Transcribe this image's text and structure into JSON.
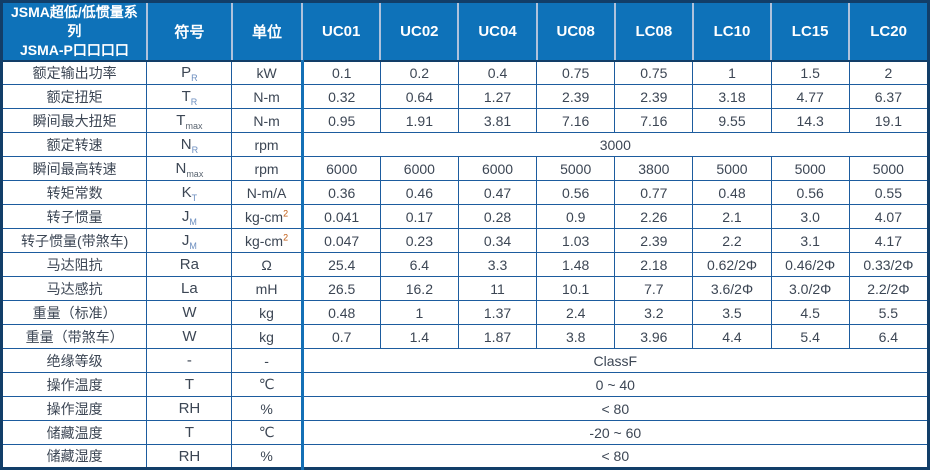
{
  "table_title": {
    "line1": "JSMA超低/低惯量系列",
    "line2": "JSMA-P口口口口"
  },
  "header": {
    "symbol_label": "符号",
    "unit_label": "单位",
    "models": [
      "UC01",
      "UC02",
      "UC04",
      "UC08",
      "LC08",
      "LC10",
      "LC15",
      "LC20"
    ]
  },
  "rows": [
    {
      "label": "额定输出功率",
      "symbol": {
        "base": "P",
        "sub": "R"
      },
      "unit": {
        "base": "kW"
      },
      "values": [
        "0.1",
        "0.2",
        "0.4",
        "0.75",
        "0.75",
        "1",
        "1.5",
        "2"
      ]
    },
    {
      "label": "额定扭矩",
      "symbol": {
        "base": "T",
        "sub": "R"
      },
      "unit": {
        "base": "N-m"
      },
      "values": [
        "0.32",
        "0.64",
        "1.27",
        "2.39",
        "2.39",
        "3.18",
        "4.77",
        "6.37"
      ]
    },
    {
      "label": "瞬间最大扭矩",
      "symbol": {
        "base": "T",
        "sub": "max"
      },
      "unit": {
        "base": "N-m"
      },
      "values": [
        "0.95",
        "1.91",
        "3.81",
        "7.16",
        "7.16",
        "9.55",
        "14.3",
        "19.1"
      ]
    },
    {
      "label": "额定转速",
      "symbol": {
        "base": "N",
        "sub": "R"
      },
      "unit": {
        "base": "rpm"
      },
      "span_value": "3000"
    },
    {
      "label": "瞬间最高转速",
      "symbol": {
        "base": "N",
        "sub": "max"
      },
      "unit": {
        "base": "rpm"
      },
      "values": [
        "6000",
        "6000",
        "6000",
        "5000",
        "3800",
        "5000",
        "5000",
        "5000"
      ]
    },
    {
      "label": "转矩常数",
      "symbol": {
        "base": "K",
        "sub": "T"
      },
      "unit": {
        "base": "N-m/A"
      },
      "values": [
        "0.36",
        "0.46",
        "0.47",
        "0.56",
        "0.77",
        "0.48",
        "0.56",
        "0.55"
      ]
    },
    {
      "label": "转子惯量",
      "symbol": {
        "base": "J",
        "sub": "M"
      },
      "unit": {
        "base": "kg-cm",
        "sup": "2"
      },
      "values": [
        "0.041",
        "0.17",
        "0.28",
        "0.9",
        "2.26",
        "2.1",
        "3.0",
        "4.07"
      ]
    },
    {
      "label": "转子惯量(带煞车)",
      "symbol": {
        "base": "J",
        "sub": "M"
      },
      "unit": {
        "base": "kg-cm",
        "sup": "2"
      },
      "values": [
        "0.047",
        "0.23",
        "0.34",
        "1.03",
        "2.39",
        "2.2",
        "3.1",
        "4.17"
      ]
    },
    {
      "label": "马达阻抗",
      "symbol": {
        "base": "Ra"
      },
      "unit": {
        "base": "Ω"
      },
      "values": [
        "25.4",
        "6.4",
        "3.3",
        "1.48",
        "2.18",
        "0.62/2Φ",
        "0.46/2Φ",
        "0.33/2Φ"
      ]
    },
    {
      "label": "马达感抗",
      "symbol": {
        "base": "La"
      },
      "unit": {
        "base": "mH"
      },
      "values": [
        "26.5",
        "16.2",
        "11",
        "10.1",
        "7.7",
        "3.6/2Φ",
        "3.0/2Φ",
        "2.2/2Φ"
      ]
    },
    {
      "label": "重量（标准）",
      "symbol": {
        "base": "W"
      },
      "unit": {
        "base": "kg"
      },
      "values": [
        "0.48",
        "1",
        "1.37",
        "2.4",
        "3.2",
        "3.5",
        "4.5",
        "5.5"
      ]
    },
    {
      "label": "重量（带煞车）",
      "symbol": {
        "base": "W"
      },
      "unit": {
        "base": "kg"
      },
      "values": [
        "0.7",
        "1.4",
        "1.87",
        "3.8",
        "3.96",
        "4.4",
        "5.4",
        "6.4"
      ]
    },
    {
      "label": "绝缘等级",
      "symbol": {
        "base": "-"
      },
      "unit": {
        "base": "-"
      },
      "span_value": "ClassF"
    },
    {
      "label": "操作温度",
      "symbol": {
        "base": "T"
      },
      "unit": {
        "base": "℃"
      },
      "span_value": "0 ~ 40"
    },
    {
      "label": "操作湿度",
      "symbol": {
        "base": "RH"
      },
      "unit": {
        "base": "%"
      },
      "span_value": "< 80"
    },
    {
      "label": "储藏温度",
      "symbol": {
        "base": "T"
      },
      "unit": {
        "base": "℃"
      },
      "span_value": "-20 ~ 60"
    },
    {
      "label": "储藏湿度",
      "symbol": {
        "base": "RH"
      },
      "unit": {
        "base": "%"
      },
      "span_value": "< 80"
    }
  ],
  "colors": {
    "header_background": "#0E72B9",
    "grid_border": "#1D5C9E",
    "outer_border": "#123E68",
    "thick_column_separator": "#1470B6",
    "body_text": "#3C4654",
    "unit_superscript": "#C05A11"
  }
}
